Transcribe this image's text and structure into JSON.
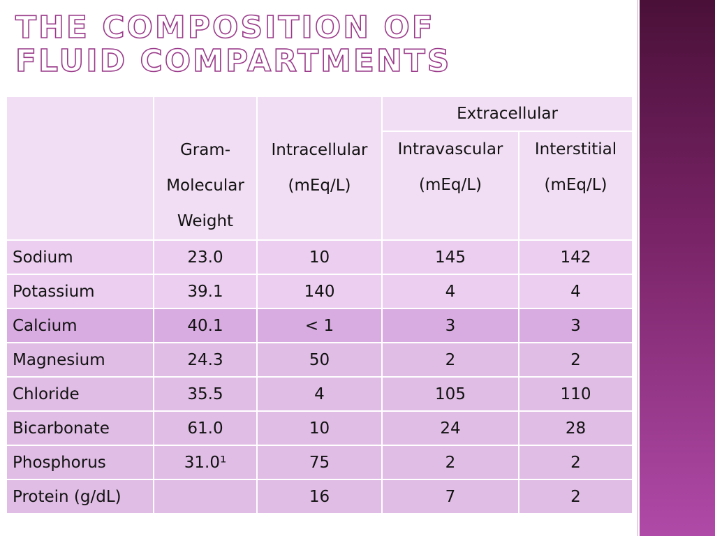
{
  "title": "The Composition of Fluid Compartments",
  "table": {
    "header": {
      "group": "Extracellular",
      "columns": [
        "Gram-Molecular Weight",
        "Intracellular (mEq/L)",
        "Intravascular (mEq/L)",
        "Interstitial (mEq/L)"
      ]
    },
    "rows": [
      [
        "Sodium",
        "23.0",
        "10",
        "145",
        "142"
      ],
      [
        "Potassium",
        "39.1",
        "140",
        "4",
        "4"
      ],
      [
        "Calcium",
        "40.1",
        "< 1",
        "3",
        "3"
      ],
      [
        "Magnesium",
        "24.3",
        "50",
        "2",
        "2"
      ],
      [
        "Chloride",
        "35.5",
        "4",
        "105",
        "110"
      ],
      [
        "Bicarbonate",
        "61.0",
        "10",
        "24",
        "28"
      ],
      [
        "Phosphorus",
        "31.0¹",
        "75",
        "2",
        "2"
      ],
      [
        "Protein (g/dL)",
        "",
        "16",
        "7",
        "2"
      ]
    ]
  }
}
